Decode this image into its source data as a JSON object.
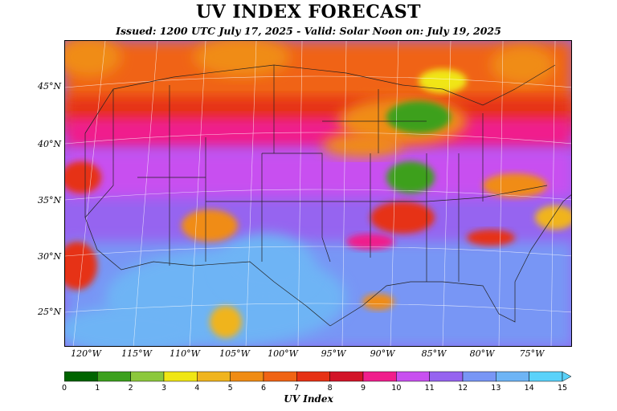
{
  "header": {
    "title": "UV INDEX FORECAST",
    "subtitle": "Issued: 1200 UTC July 17, 2025 - Valid: Solar Noon on: July 19, 2025"
  },
  "map": {
    "lat_labels": [
      "45°N",
      "40°N",
      "35°N",
      "30°N",
      "25°N"
    ],
    "lon_labels": [
      "120°W",
      "115°W",
      "110°W",
      "105°W",
      "100°W",
      "95°W",
      "90°W",
      "85°W",
      "80°W",
      "75°W"
    ]
  },
  "colorbar": {
    "label": "UV Index",
    "ticks": [
      "0",
      "1",
      "2",
      "3",
      "4",
      "5",
      "6",
      "7",
      "8",
      "9",
      "10",
      "11",
      "12",
      "13",
      "14",
      "15"
    ],
    "colors": [
      "#006400",
      "#3ca01e",
      "#8cc83c",
      "#f0e614",
      "#f0b41e",
      "#f08c14",
      "#f06414",
      "#e63214",
      "#d21428",
      "#f01e8c",
      "#c850f0",
      "#9664f0",
      "#7896f5",
      "#6eb4f5",
      "#5ad2fa"
    ]
  }
}
